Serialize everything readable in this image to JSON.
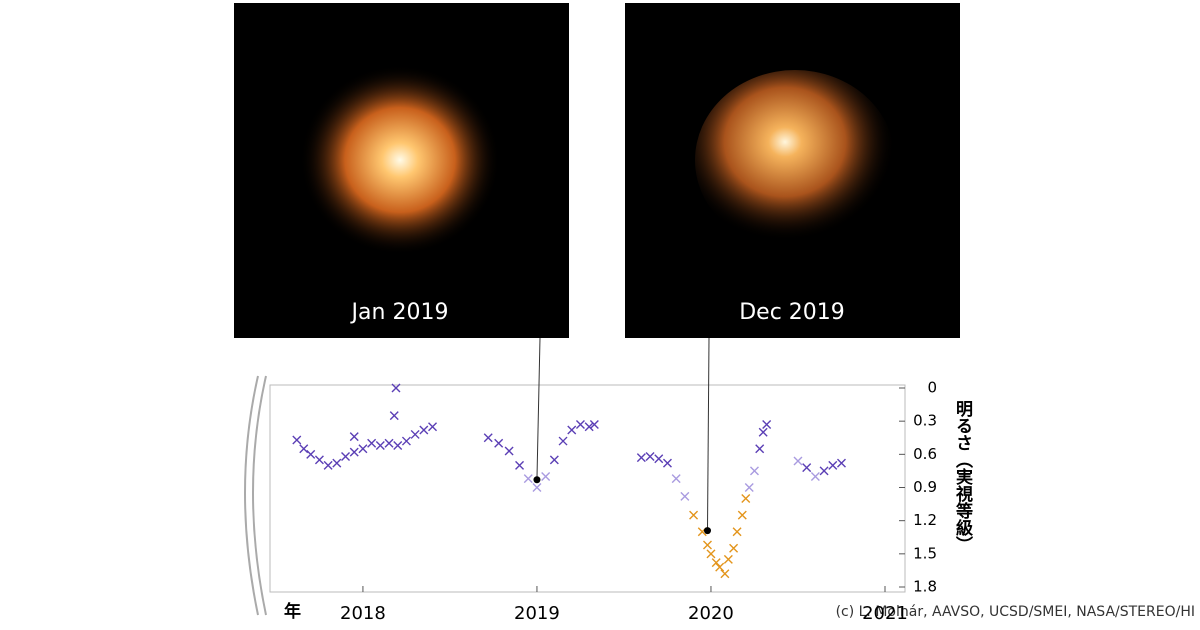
{
  "chart_data": {
    "type": "scatter",
    "panels": [
      {
        "label": "Jan 2019"
      },
      {
        "label": "Dec 2019"
      }
    ],
    "xlim": [
      2017.466,
      2021.115
    ],
    "xticks": [
      2018,
      2019,
      2020,
      2021
    ],
    "ylim": [
      0,
      1.8
    ],
    "yticks": [
      0,
      0.3,
      0.6,
      0.9,
      1.2,
      1.5,
      1.8
    ],
    "y_inverted": true,
    "x_label": "年",
    "y_label": "明るさ（実視等級）",
    "credit": "(c) L. Molnár, AAVSO, UCSD/SMEI, NASA/STEREO/HI",
    "series": [
      {
        "color": "#5b3fb5",
        "x": [
          2017.62,
          2017.66,
          2017.7,
          2017.75,
          2017.8,
          2017.85,
          2017.9,
          2017.95,
          2017.95,
          2018.0,
          2018.05,
          2018.1,
          2018.15,
          2018.18,
          2018.19,
          2018.2,
          2018.25,
          2018.3,
          2018.35,
          2018.4,
          2018.72,
          2018.78,
          2018.84,
          2018.9,
          2019.1,
          2019.15,
          2019.2,
          2019.25,
          2019.3,
          2019.33,
          2019.6,
          2019.65,
          2019.7,
          2019.75,
          2020.28,
          2020.3,
          2020.32,
          2020.55,
          2020.65,
          2020.7,
          2020.75
        ],
        "y": [
          0.47,
          0.55,
          0.6,
          0.65,
          0.7,
          0.68,
          0.62,
          0.58,
          0.44,
          0.55,
          0.5,
          0.52,
          0.5,
          0.25,
          0.0,
          0.52,
          0.48,
          0.42,
          0.38,
          0.35,
          0.45,
          0.5,
          0.57,
          0.7,
          0.65,
          0.48,
          0.38,
          0.33,
          0.35,
          0.33,
          0.63,
          0.62,
          0.64,
          0.68,
          0.55,
          0.4,
          0.33,
          0.72,
          0.75,
          0.7,
          0.68
        ]
      },
      {
        "color": "#a99be0",
        "x": [
          2018.95,
          2019.0,
          2019.05,
          2019.8,
          2019.85,
          2020.22,
          2020.25,
          2020.5,
          2020.6
        ],
        "y": [
          0.82,
          0.9,
          0.8,
          0.82,
          0.98,
          0.9,
          0.75,
          0.66,
          0.8
        ]
      },
      {
        "color": "#e3951c",
        "x": [
          2019.9,
          2019.95,
          2019.98,
          2020.0,
          2020.03,
          2020.05,
          2020.08,
          2020.1,
          2020.13,
          2020.15,
          2020.18,
          2020.2
        ],
        "y": [
          1.15,
          1.3,
          1.42,
          1.5,
          1.58,
          1.62,
          1.68,
          1.55,
          1.45,
          1.3,
          1.15,
          1.0
        ]
      }
    ],
    "markers": [
      {
        "x": 2019.0,
        "y": 0.83
      },
      {
        "x": 2019.98,
        "y": 1.29
      }
    ]
  }
}
